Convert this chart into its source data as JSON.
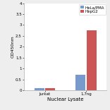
{
  "categories": [
    "Jurkat",
    "1.7ng"
  ],
  "series": [
    {
      "label": "HeLa/PMA",
      "color": "#7799cc",
      "values": [
        0.1,
        0.7
      ]
    },
    {
      "label": "HepG2",
      "color": "#cc5555",
      "values": [
        0.08,
        2.75
      ]
    }
  ],
  "xlabel": "Nuclear Lysate",
  "ylabel": "OD450nm",
  "ylim": [
    0,
    4.0
  ],
  "yticks": [
    0,
    0.5,
    1.0,
    1.5,
    2.0,
    2.5,
    3.0,
    3.5,
    4.0
  ],
  "ytick_labels": [
    "0",
    "0.5",
    "1",
    "1.5",
    "2",
    "2.5",
    "3",
    "3.5",
    "4"
  ],
  "background_color": "#eeeeee",
  "plot_bg": "#ffffff",
  "bar_width": 0.12,
  "x_positions": [
    0.25,
    0.75
  ],
  "legend_fontsize": 4.0,
  "axis_fontsize": 5.0,
  "tick_fontsize": 4.0,
  "ylabel_fontsize": 4.5
}
